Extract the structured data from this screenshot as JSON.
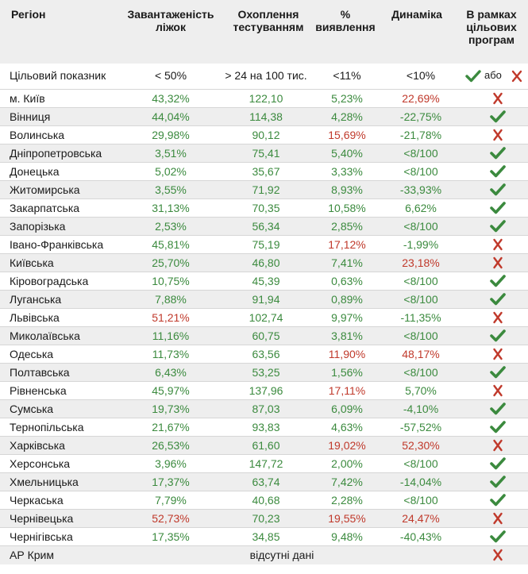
{
  "header": {
    "region": "Регіон",
    "occupancy": "Завантаженість ліжок",
    "testing": "Охоплення тестуванням",
    "detection": "% виявлення",
    "dynamics": "Динаміка",
    "programs": "В рамках цільових програм"
  },
  "target": {
    "label": "Цільовий показник",
    "occupancy": "< 50%",
    "testing": "> 24 на 100 тис.",
    "detection": "<11%",
    "dynamics": "<10%",
    "or_word": "або"
  },
  "colors": {
    "green": "#3b8a3e",
    "red": "#c0392b",
    "stripe": "#eeeeee"
  },
  "rows": [
    {
      "region": "м. Київ",
      "occupancy": "43,32%",
      "occ_c": "green",
      "testing": "122,10",
      "detection": "5,23%",
      "det_c": "green",
      "dynamics": "22,69%",
      "dyn_c": "red",
      "ok": false
    },
    {
      "region": "Вінниця",
      "occupancy": "44,04%",
      "occ_c": "green",
      "testing": "114,38",
      "detection": "4,28%",
      "det_c": "green",
      "dynamics": "-22,75%",
      "dyn_c": "green",
      "ok": true
    },
    {
      "region": "Волинська",
      "occupancy": "29,98%",
      "occ_c": "green",
      "testing": "90,12",
      "detection": "15,69%",
      "det_c": "red",
      "dynamics": "-21,78%",
      "dyn_c": "green",
      "ok": false
    },
    {
      "region": "Дніпропетровська",
      "occupancy": "3,51%",
      "occ_c": "green",
      "testing": "75,41",
      "detection": "5,40%",
      "det_c": "green",
      "dynamics": "<8/100",
      "dyn_c": "green",
      "ok": true
    },
    {
      "region": "Донецька",
      "occupancy": "5,02%",
      "occ_c": "green",
      "testing": "35,67",
      "detection": "3,33%",
      "det_c": "green",
      "dynamics": "<8/100",
      "dyn_c": "green",
      "ok": true
    },
    {
      "region": "Житомирська",
      "occupancy": "3,55%",
      "occ_c": "green",
      "testing": "71,92",
      "detection": "8,93%",
      "det_c": "green",
      "dynamics": "-33,93%",
      "dyn_c": "green",
      "ok": true
    },
    {
      "region": "Закарпатська",
      "occupancy": "31,13%",
      "occ_c": "green",
      "testing": "70,35",
      "detection": "10,58%",
      "det_c": "green",
      "dynamics": "6,62%",
      "dyn_c": "green",
      "ok": true
    },
    {
      "region": "Запорізька",
      "occupancy": "2,53%",
      "occ_c": "green",
      "testing": "56,34",
      "detection": "2,85%",
      "det_c": "green",
      "dynamics": "<8/100",
      "dyn_c": "green",
      "ok": true
    },
    {
      "region": "Івано-Франківська",
      "occupancy": "45,81%",
      "occ_c": "green",
      "testing": "75,19",
      "detection": "17,12%",
      "det_c": "red",
      "dynamics": "-1,99%",
      "dyn_c": "green",
      "ok": false
    },
    {
      "region": "Київська",
      "occupancy": "25,70%",
      "occ_c": "green",
      "testing": "46,80",
      "detection": "7,41%",
      "det_c": "green",
      "dynamics": "23,18%",
      "dyn_c": "red",
      "ok": false
    },
    {
      "region": "Кіровоградська",
      "occupancy": "10,75%",
      "occ_c": "green",
      "testing": "45,39",
      "detection": "0,63%",
      "det_c": "green",
      "dynamics": "<8/100",
      "dyn_c": "green",
      "ok": true
    },
    {
      "region": "Луганська",
      "occupancy": "7,88%",
      "occ_c": "green",
      "testing": "91,94",
      "detection": "0,89%",
      "det_c": "green",
      "dynamics": "<8/100",
      "dyn_c": "green",
      "ok": true
    },
    {
      "region": "Львівська",
      "occupancy": "51,21%",
      "occ_c": "red",
      "testing": "102,74",
      "detection": "9,97%",
      "det_c": "green",
      "dynamics": "-11,35%",
      "dyn_c": "green",
      "ok": false
    },
    {
      "region": "Миколаївська",
      "occupancy": "11,16%",
      "occ_c": "green",
      "testing": "60,75",
      "detection": "3,81%",
      "det_c": "green",
      "dynamics": "<8/100",
      "dyn_c": "green",
      "ok": true
    },
    {
      "region": "Одеська",
      "occupancy": "11,73%",
      "occ_c": "green",
      "testing": "63,56",
      "detection": "11,90%",
      "det_c": "red",
      "dynamics": "48,17%",
      "dyn_c": "red",
      "ok": false
    },
    {
      "region": "Полтавська",
      "occupancy": "6,43%",
      "occ_c": "green",
      "testing": "53,25",
      "detection": "1,56%",
      "det_c": "green",
      "dynamics": "<8/100",
      "dyn_c": "green",
      "ok": true
    },
    {
      "region": "Рівненська",
      "occupancy": "45,97%",
      "occ_c": "green",
      "testing": "137,96",
      "detection": "17,11%",
      "det_c": "red",
      "dynamics": "5,70%",
      "dyn_c": "green",
      "ok": false
    },
    {
      "region": "Сумська",
      "occupancy": "19,73%",
      "occ_c": "green",
      "testing": "87,03",
      "detection": "6,09%",
      "det_c": "green",
      "dynamics": "-4,10%",
      "dyn_c": "green",
      "ok": true
    },
    {
      "region": "Тернопільська",
      "occupancy": "21,67%",
      "occ_c": "green",
      "testing": "93,83",
      "detection": "4,63%",
      "det_c": "green",
      "dynamics": "-57,52%",
      "dyn_c": "green",
      "ok": true
    },
    {
      "region": "Харківська",
      "occupancy": "26,53%",
      "occ_c": "green",
      "testing": "61,60",
      "detection": "19,02%",
      "det_c": "red",
      "dynamics": "52,30%",
      "dyn_c": "red",
      "ok": false
    },
    {
      "region": "Херсонська",
      "occupancy": "3,96%",
      "occ_c": "green",
      "testing": "147,72",
      "detection": "2,00%",
      "det_c": "green",
      "dynamics": "<8/100",
      "dyn_c": "green",
      "ok": true
    },
    {
      "region": "Хмельницька",
      "occupancy": "17,37%",
      "occ_c": "green",
      "testing": "63,74",
      "detection": "7,42%",
      "det_c": "green",
      "dynamics": "-14,04%",
      "dyn_c": "green",
      "ok": true
    },
    {
      "region": "Черкаська",
      "occupancy": "7,79%",
      "occ_c": "green",
      "testing": "40,68",
      "detection": "2,28%",
      "det_c": "green",
      "dynamics": "<8/100",
      "dyn_c": "green",
      "ok": true
    },
    {
      "region": "Чернівецька",
      "occupancy": "52,73%",
      "occ_c": "red",
      "testing": "70,23",
      "detection": "19,55%",
      "det_c": "red",
      "dynamics": "24,47%",
      "dyn_c": "red",
      "ok": false
    },
    {
      "region": "Чернігівська",
      "occupancy": "17,35%",
      "occ_c": "green",
      "testing": "34,85",
      "detection": "9,48%",
      "det_c": "green",
      "dynamics": "-40,43%",
      "dyn_c": "green",
      "ok": true
    }
  ],
  "last_row": {
    "region": "АР Крим",
    "note": "відсутні дані",
    "ok": false
  }
}
